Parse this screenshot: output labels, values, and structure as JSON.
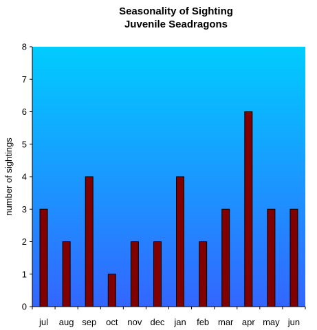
{
  "chart_data": {
    "type": "bar",
    "title": [
      "Seasonality of Sighting",
      "Juvenile Seadragons"
    ],
    "xlabel": "",
    "ylabel": "number of sightings",
    "categories": [
      "jul",
      "aug",
      "sep",
      "oct",
      "nov",
      "dec",
      "jan",
      "feb",
      "mar",
      "apr",
      "may",
      "jun"
    ],
    "values": [
      3,
      2,
      4,
      1,
      2,
      2,
      4,
      2,
      3,
      6,
      3,
      3
    ],
    "ylim": [
      0,
      8
    ],
    "yticks": [
      "0",
      "1",
      "2",
      "3",
      "4",
      "5",
      "6",
      "7",
      "8"
    ],
    "grid": false,
    "legend": "none",
    "colors": {
      "bar_fill": "#800000",
      "bar_stroke": "#000000",
      "plot_bg_top": "#00ccff",
      "plot_bg_bottom": "#3366ff",
      "axis": "#000000"
    }
  }
}
